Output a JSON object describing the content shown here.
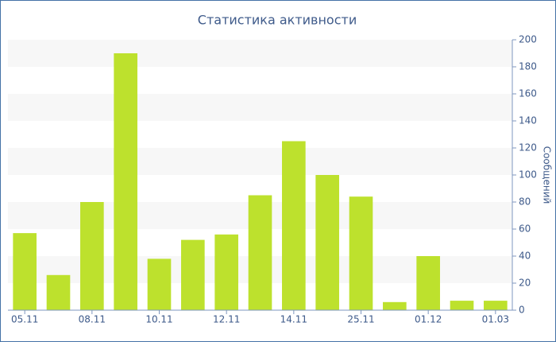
{
  "chart_data": {
    "type": "bar",
    "title": "Статистика активности",
    "y_axis_label": "Сообщений",
    "categories": [
      "05.11",
      null,
      "08.11",
      null,
      "10.11",
      null,
      "12.11",
      null,
      "14.11",
      null,
      "25.11",
      null,
      "01.12",
      null,
      "01.03"
    ],
    "values": [
      57,
      26,
      80,
      190,
      38,
      52,
      56,
      85,
      125,
      100,
      84,
      6,
      40,
      7,
      7
    ],
    "color": "#bde12d",
    "ylim": [
      0,
      200
    ],
    "yticks": [
      0,
      20,
      40,
      60,
      80,
      100,
      120,
      140,
      160,
      180,
      200
    ],
    "grid": "alternate-bands"
  }
}
